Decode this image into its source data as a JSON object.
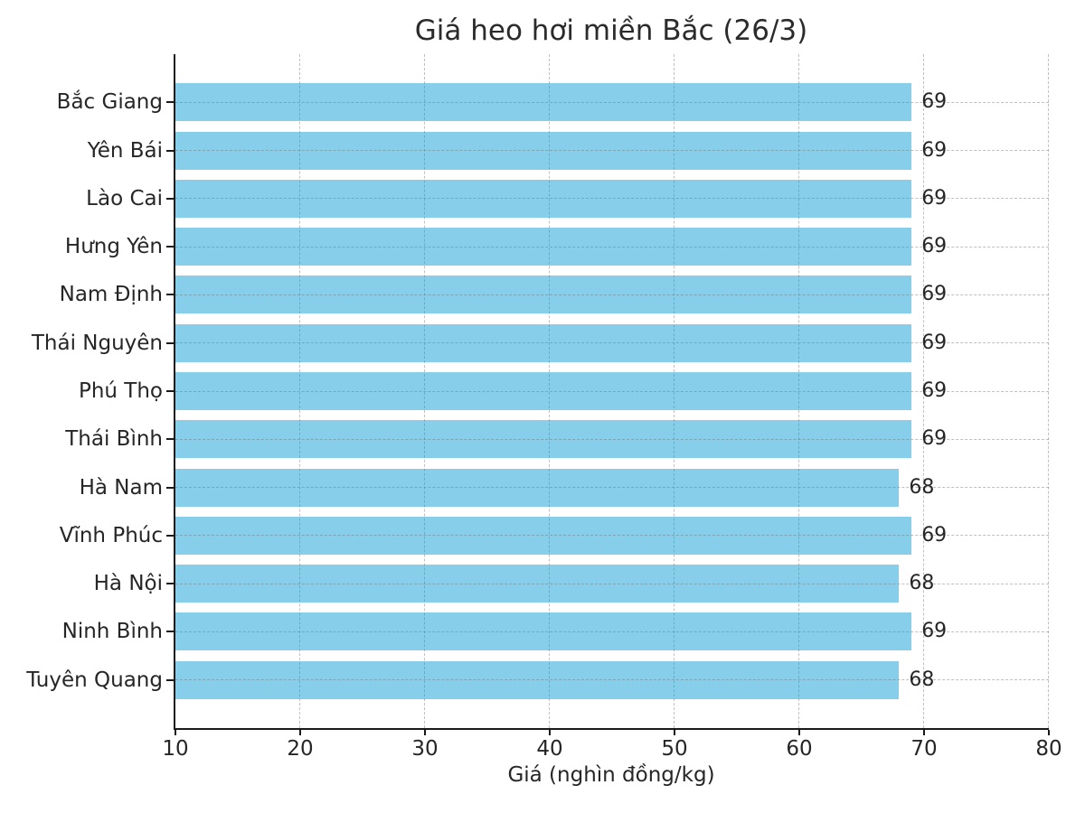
{
  "chart_data": {
    "type": "bar",
    "orientation": "horizontal",
    "title": "Giá heo hơi miền Bắc (26/3)",
    "xlabel": "Giá (nghìn đồng/kg)",
    "ylabel": "",
    "xlim": [
      10,
      80
    ],
    "xticks": [
      10,
      20,
      30,
      40,
      50,
      60,
      70,
      80
    ],
    "grid": true,
    "grid_style": "dashed",
    "legend_position": "none",
    "bar_color": "#87CEEB",
    "categories": [
      "Bắc Giang",
      "Yên Bái",
      "Lào Cai",
      "Hưng Yên",
      "Nam Định",
      "Thái Nguyên",
      "Phú Thọ",
      "Thái Bình",
      "Hà Nam",
      "Vĩnh Phúc",
      "Hà Nội",
      "Ninh Bình",
      "Tuyên Quang"
    ],
    "values": [
      69,
      69,
      69,
      69,
      69,
      69,
      69,
      69,
      68,
      69,
      68,
      69,
      68
    ]
  },
  "colors": {
    "bar": "#87CEEB",
    "text": "#262626",
    "grid": "#c4c4c4",
    "spine": "#1a1a1a",
    "background": "#ffffff"
  }
}
